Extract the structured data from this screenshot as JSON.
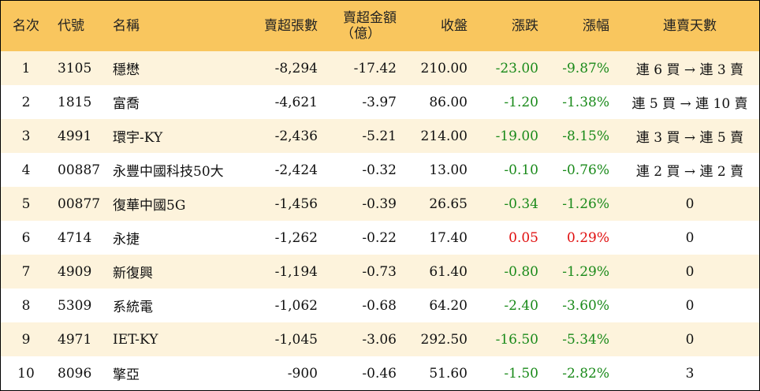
{
  "headers": {
    "rank": "名次",
    "code": "代號",
    "name": "名稱",
    "net_sell_shares": "賣超張數",
    "net_sell_amount_line1": "賣超金額",
    "net_sell_amount_line2": "（億）",
    "close": "收盤",
    "change": "漲跌",
    "change_pct": "漲幅",
    "streak": "連賣天數"
  },
  "colors": {
    "header_bg": "#f9c65e",
    "stripe_bg": "#fdf3dc",
    "down": "#1a8a1a",
    "up": "#e01010"
  },
  "rows": [
    {
      "rank": "1",
      "code": "3105",
      "name": "穩懋",
      "shares": "-8,294",
      "amount": "-17.42",
      "close": "210.00",
      "change": "-23.00",
      "pct": "-9.87%",
      "streak": "連 6 買 → 連 3 賣",
      "trend": "down"
    },
    {
      "rank": "2",
      "code": "1815",
      "name": "富喬",
      "shares": "-4,621",
      "amount": "-3.97",
      "close": "86.00",
      "change": "-1.20",
      "pct": "-1.38%",
      "streak": "連 5 買 → 連 10 賣",
      "trend": "down"
    },
    {
      "rank": "3",
      "code": "4991",
      "name": "環宇-KY",
      "shares": "-2,436",
      "amount": "-5.21",
      "close": "214.00",
      "change": "-19.00",
      "pct": "-8.15%",
      "streak": "連 3 買 → 連 5 賣",
      "trend": "down"
    },
    {
      "rank": "4",
      "code": "00887",
      "name": "永豐中國科技50大",
      "shares": "-2,424",
      "amount": "-0.32",
      "close": "13.00",
      "change": "-0.10",
      "pct": "-0.76%",
      "streak": "連 2 買 → 連 2 賣",
      "trend": "down"
    },
    {
      "rank": "5",
      "code": "00877",
      "name": "復華中國5G",
      "shares": "-1,456",
      "amount": "-0.39",
      "close": "26.65",
      "change": "-0.34",
      "pct": "-1.26%",
      "streak": "0",
      "trend": "down"
    },
    {
      "rank": "6",
      "code": "4714",
      "name": "永捷",
      "shares": "-1,262",
      "amount": "-0.22",
      "close": "17.40",
      "change": "0.05",
      "pct": "0.29%",
      "streak": "0",
      "trend": "up"
    },
    {
      "rank": "7",
      "code": "4909",
      "name": "新復興",
      "shares": "-1,194",
      "amount": "-0.73",
      "close": "61.40",
      "change": "-0.80",
      "pct": "-1.29%",
      "streak": "0",
      "trend": "down"
    },
    {
      "rank": "8",
      "code": "5309",
      "name": "系統電",
      "shares": "-1,062",
      "amount": "-0.68",
      "close": "64.20",
      "change": "-2.40",
      "pct": "-3.60%",
      "streak": "0",
      "trend": "down"
    },
    {
      "rank": "9",
      "code": "4971",
      "name": "IET-KY",
      "shares": "-1,045",
      "amount": "-3.06",
      "close": "292.50",
      "change": "-16.50",
      "pct": "-5.34%",
      "streak": "0",
      "trend": "down"
    },
    {
      "rank": "10",
      "code": "8096",
      "name": "擎亞",
      "shares": "-900",
      "amount": "-0.46",
      "close": "51.60",
      "change": "-1.50",
      "pct": "-2.82%",
      "streak": "3",
      "trend": "down"
    }
  ]
}
